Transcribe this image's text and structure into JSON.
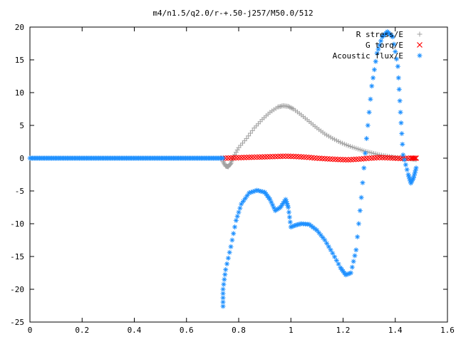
{
  "chart_data": {
    "type": "scatter",
    "title": "m4/n1.5/q2.0/r-+.50-j257/M50.0/512",
    "xlabel": "",
    "ylabel": "",
    "xlim": [
      0,
      1.6
    ],
    "ylim": [
      -25,
      20
    ],
    "xticks": [
      "0",
      "0.2",
      "0.4",
      "0.6",
      "0.8",
      "1",
      "1.2",
      "1.4",
      "1.6"
    ],
    "yticks": [
      "20",
      "15",
      "10",
      "5",
      "0",
      "-5",
      "-10",
      "-15",
      "-20",
      "-25"
    ],
    "grid": false,
    "legend_position": "top-right",
    "series": [
      {
        "name": "R stress/E",
        "marker": "+",
        "color": "#a0a0a0",
        "x": [
          0.74,
          0.75,
          0.76,
          0.77,
          0.78,
          0.8,
          0.83,
          0.86,
          0.89,
          0.92,
          0.95,
          0.97,
          0.99,
          1.01,
          1.04,
          1.07,
          1.1,
          1.13,
          1.16,
          1.19,
          1.22,
          1.25,
          1.28,
          1.31,
          1.34,
          1.37,
          1.4,
          1.43,
          1.46,
          1.48
        ],
        "y": [
          -0.5,
          -1.2,
          -1.3,
          -0.8,
          0.2,
          1.6,
          3.0,
          4.6,
          5.9,
          7.0,
          7.8,
          8.0,
          7.9,
          7.5,
          6.6,
          5.6,
          4.6,
          3.7,
          3.0,
          2.4,
          1.9,
          1.5,
          1.1,
          0.8,
          0.5,
          0.3,
          0.1,
          0.0,
          -0.1,
          -0.2
        ]
      },
      {
        "name": "G torq/E",
        "marker": "x",
        "color": "#ff0000",
        "x": [
          0.74,
          0.78,
          0.82,
          0.86,
          0.9,
          0.94,
          0.98,
          1.02,
          1.06,
          1.1,
          1.14,
          1.18,
          1.22,
          1.26,
          1.3,
          1.34,
          1.38,
          1.42,
          1.46,
          1.48
        ],
        "y": [
          0.0,
          0.05,
          0.1,
          0.15,
          0.2,
          0.25,
          0.3,
          0.25,
          0.15,
          0.0,
          -0.1,
          -0.2,
          -0.25,
          -0.15,
          0.0,
          0.1,
          0.05,
          -0.05,
          0.0,
          0.0
        ]
      },
      {
        "name": "Acoustic flux/E",
        "marker": "*",
        "color": "#1e90ff",
        "x": [
          0.74,
          0.74,
          0.75,
          0.77,
          0.79,
          0.81,
          0.84,
          0.87,
          0.9,
          0.92,
          0.94,
          0.96,
          0.98,
          0.99,
          1.0,
          1.02,
          1.04,
          1.07,
          1.1,
          1.13,
          1.16,
          1.19,
          1.21,
          1.23,
          1.25,
          1.27,
          1.29,
          1.31,
          1.33,
          1.35,
          1.37,
          1.39,
          1.41,
          1.42,
          1.43,
          1.45,
          1.46,
          1.47,
          1.48
        ],
        "y": [
          -22.6,
          -20.0,
          -17.0,
          -13.5,
          -9.5,
          -7.0,
          -5.3,
          -4.9,
          -5.2,
          -6.3,
          -8.0,
          -7.5,
          -6.3,
          -7.5,
          -10.5,
          -10.2,
          -10.0,
          -10.1,
          -11.0,
          -12.5,
          -14.5,
          -16.7,
          -17.8,
          -17.5,
          -14.0,
          -6.0,
          3.0,
          11.0,
          16.0,
          18.5,
          19.3,
          18.5,
          14.0,
          7.0,
          0.5,
          -2.5,
          -3.8,
          -3.0,
          -1.5
        ]
      },
      {
        "name": "",
        "marker": "*",
        "color": "#1e90ff",
        "x": [
          0.0,
          0.74
        ],
        "y": [
          0.0,
          0.0
        ],
        "dense_segment": true
      }
    ]
  }
}
